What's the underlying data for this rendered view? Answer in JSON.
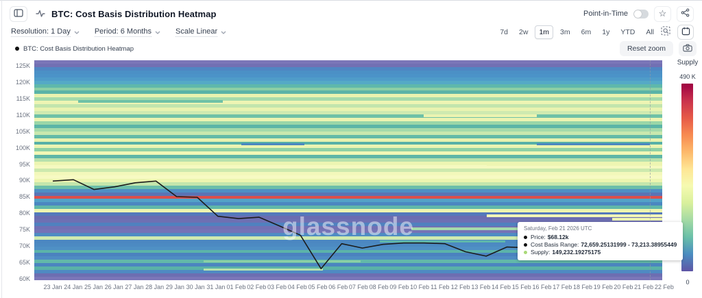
{
  "header": {
    "title": "BTC: Cost Basis Distribution Heatmap",
    "point_in_time_label": "Point-in-Time",
    "controls": [
      {
        "label": "Resolution: 1 Day"
      },
      {
        "label": "Period: 6 Months"
      },
      {
        "label": "Scale Linear"
      }
    ],
    "range_buttons": [
      "7d",
      "2w",
      "1m",
      "3m",
      "6m",
      "1y",
      "YTD",
      "All"
    ],
    "active_range": "1m",
    "icons": [
      "panel-toggle-icon",
      "activity-icon",
      "point-in-time-toggle",
      "star-icon",
      "share-icon",
      "zoom-selection-icon",
      "calendar-icon"
    ],
    "star_glyph": "☆"
  },
  "legend": {
    "series_label": "BTC: Cost Basis Distribution Heatmap"
  },
  "toolbar": {
    "reset_zoom_label": "Reset zoom",
    "camera_icon": "camera-icon"
  },
  "watermark": "glassnode",
  "tooltip": {
    "date": "Saturday, Feb 21 2026 UTC",
    "rows": [
      {
        "label": "Price:",
        "value": "$68.12k",
        "dot": "#111111"
      },
      {
        "label": "Cost Basis Range:",
        "value": "72,659.25131999 - 73,213.38955449",
        "dot": "#111111"
      },
      {
        "label": "Supply:",
        "value": "149,232.19275175",
        "dot": "#a9d977"
      }
    ]
  },
  "colorbar": {
    "title": "Supply",
    "max_label": "490 K",
    "min_label": "0",
    "stops": [
      "#9e0142",
      "#c9324c",
      "#e65948",
      "#f78a51",
      "#fdb96b",
      "#fee695",
      "#f6fab1",
      "#d9f09c",
      "#a4daa4",
      "#6ac0a9",
      "#4b8dc1",
      "#5e55a5"
    ]
  },
  "chart_data": {
    "type": "heatmap",
    "title": "BTC: Cost Basis Distribution Heatmap",
    "x_labels": [
      "23 Jan",
      "24 Jan",
      "25 Jan",
      "26 Jan",
      "27 Jan",
      "28 Jan",
      "29 Jan",
      "30 Jan",
      "31 Jan",
      "01 Feb",
      "02 Feb",
      "03 Feb",
      "04 Feb",
      "05 Feb",
      "06 Feb",
      "07 Feb",
      "08 Feb",
      "09 Feb",
      "10 Feb",
      "11 Feb",
      "12 Feb",
      "13 Feb",
      "14 Feb",
      "15 Feb",
      "16 Feb",
      "17 Feb",
      "18 Feb",
      "19 Feb",
      "20 Feb",
      "21 Feb",
      "22 Feb"
    ],
    "y_ticks": [
      "125K",
      "120K",
      "115K",
      "110K",
      "105K",
      "100K",
      "95K",
      "90K",
      "85K",
      "80K",
      "75K",
      "70K",
      "65K",
      "60K"
    ],
    "y_range_usd": [
      60000,
      125000
    ],
    "supply_range": [
      0,
      490000
    ],
    "price_line": {
      "name": "Price",
      "unit": "USD thousands",
      "x": [
        "23 Jan",
        "24 Jan",
        "25 Jan",
        "26 Jan",
        "27 Jan",
        "28 Jan",
        "29 Jan",
        "30 Jan",
        "31 Jan",
        "01 Feb",
        "02 Feb",
        "03 Feb",
        "04 Feb",
        "05 Feb",
        "06 Feb",
        "07 Feb",
        "08 Feb",
        "09 Feb",
        "10 Feb",
        "11 Feb",
        "12 Feb",
        "13 Feb",
        "14 Feb",
        "15 Feb",
        "16 Feb",
        "17 Feb",
        "18 Feb",
        "19 Feb",
        "20 Feb",
        "21 Feb"
      ],
      "values": [
        89.3,
        89.7,
        86.8,
        87.6,
        88.8,
        89.3,
        84.7,
        84.5,
        78.9,
        78.2,
        78.6,
        76.0,
        73.3,
        63.4,
        70.8,
        69.5,
        70.6,
        71.0,
        71.0,
        70.8,
        68.4,
        67.1,
        69.8,
        69.6,
        68.2,
        67.3,
        66.6,
        66.9,
        67.6,
        68.12
      ]
    },
    "heatmap_rows": {
      "top_price_k": 125,
      "row_step_k": 1,
      "colors": [
        "#7b76b8",
        "#7270b3",
        "#4f86c2",
        "#4b90c6",
        "#4b93c8",
        "#4f9cc9",
        "#55a9c6",
        "#5fb8ab",
        "#8ccfa5",
        "#5ab4a7",
        "#e9f3af",
        "#a5dbab",
        "#eef5b3",
        "#c2e5ad",
        "#e9f3b0",
        "#cfeab0",
        "#6fc1a7",
        "#ecf4b1",
        "#9ad6a8",
        "#5bb5a7",
        "#a5daaa",
        "#c9e8ae",
        "#63baa8",
        "#e7f2b0",
        "#57b0a7",
        "#ebf4b2",
        "#90d1a5",
        "#f1f7b6",
        "#5eb6a7",
        "#b8e1ac",
        "#edf5b2",
        "#f5f9c0",
        "#cde9ae",
        "#f3f8bb",
        "#f7fac3",
        "#edf5b0",
        "#c4e6ac",
        "#6cbea9",
        "#4f8fc5",
        "#5a74b5",
        "#dd4f4b",
        "#52a3c8",
        "#4b87c1",
        "#60b7a9",
        "#eef5b0",
        "#5479bb",
        "#6b6db1",
        "#6e70b3",
        "#5081bf",
        "#7270b4",
        "#7673b6",
        "#4f8cc3",
        "#cfeab0",
        "#4b87c1",
        "#4c8ac2",
        "#4f90c5",
        "#5cb4a9",
        "#4b82bf",
        "#4f8cc3",
        "#62b9a9",
        "#4b85c0",
        "#5ab2a7",
        "#4f8ac2",
        "#6d6eb1",
        "#7b76b8"
      ]
    },
    "segments": [
      {
        "p": 113.3,
        "x0": 0.07,
        "x1": 0.3,
        "c": "#6fc1a7",
        "h": 4
      },
      {
        "p": 109.0,
        "x0": 0.62,
        "x1": 0.8,
        "c": "#ecf4b1",
        "h": 4
      },
      {
        "p": 100.5,
        "x0": 0.33,
        "x1": 0.43,
        "c": "#4a86c0",
        "h": 3
      },
      {
        "p": 100.5,
        "x0": 0.8,
        "x1": 0.98,
        "c": "#4a86c0",
        "h": 3
      },
      {
        "p": 94.6,
        "x0": 0.72,
        "x1": 1.0,
        "c": "#eef5b2",
        "h": 4
      },
      {
        "p": 79.5,
        "x0": 0.72,
        "x1": 1.0,
        "c": "#f2f7b8",
        "h": 4
      },
      {
        "p": 78.4,
        "x0": 0.92,
        "x1": 1.0,
        "c": "#eef5b2",
        "h": 4
      },
      {
        "p": 75.6,
        "x0": 0.6,
        "x1": 0.78,
        "c": "#a5dbab",
        "h": 4
      },
      {
        "p": 71.8,
        "x0": 0.55,
        "x1": 0.75,
        "c": "#5fb8ab",
        "h": 3
      },
      {
        "p": 65.8,
        "x0": 0.27,
        "x1": 0.52,
        "c": "#8ccfa5",
        "h": 3
      },
      {
        "p": 63.4,
        "x0": 0.27,
        "x1": 0.46,
        "c": "#b8e1ac",
        "h": 3
      }
    ],
    "legend_position": "right-colorbar",
    "grid": false
  }
}
